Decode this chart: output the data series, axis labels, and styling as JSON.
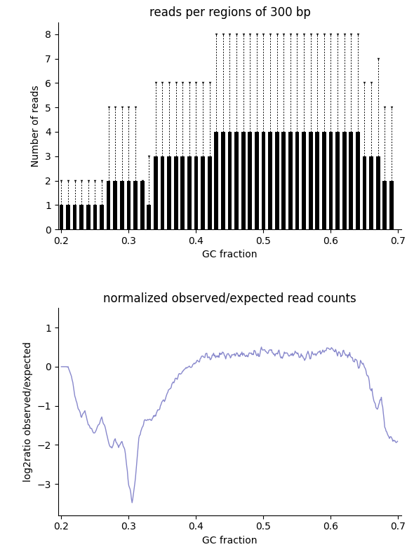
{
  "title1": "reads per regions of 300 bp",
  "title2": "normalized observed/expected read counts",
  "xlabel": "GC fraction",
  "ylabel1": "Number of reads",
  "ylabel2": "log2ratio observed/expected",
  "xlim1": [
    0.195,
    0.705
  ],
  "xlim2": [
    0.195,
    0.705
  ],
  "ylim1": [
    -0.2,
    8.8
  ],
  "ylim2": [
    -3.8,
    1.5
  ],
  "bar_color": "#000000",
  "line_color": "#8888cc",
  "bar_data": {
    "gc": [
      0.2,
      0.21,
      0.22,
      0.23,
      0.24,
      0.25,
      0.26,
      0.27,
      0.28,
      0.29,
      0.3,
      0.31,
      0.32,
      0.33,
      0.34,
      0.35,
      0.36,
      0.37,
      0.38,
      0.39,
      0.4,
      0.41,
      0.42,
      0.43,
      0.44,
      0.45,
      0.46,
      0.47,
      0.48,
      0.49,
      0.5,
      0.51,
      0.52,
      0.53,
      0.54,
      0.55,
      0.56,
      0.57,
      0.58,
      0.59,
      0.6,
      0.61,
      0.62,
      0.63,
      0.64,
      0.65,
      0.66,
      0.67,
      0.68,
      0.69
    ],
    "median": [
      1,
      1,
      1,
      1,
      1,
      1,
      1,
      2,
      2,
      2,
      2,
      2,
      2,
      1,
      3,
      3,
      3,
      3,
      3,
      3,
      3,
      3,
      3,
      4,
      4,
      4,
      4,
      4,
      4,
      4,
      4,
      4,
      4,
      4,
      4,
      4,
      4,
      4,
      4,
      4,
      4,
      4,
      4,
      4,
      4,
      3,
      3,
      3,
      2,
      2
    ],
    "upper": [
      2,
      2,
      2,
      2,
      2,
      2,
      2,
      5,
      5,
      5,
      5,
      5,
      2,
      3,
      6,
      6,
      6,
      6,
      6,
      6,
      6,
      6,
      6,
      8,
      8,
      8,
      8,
      8,
      8,
      8,
      8,
      8,
      8,
      8,
      8,
      8,
      8,
      8,
      8,
      8,
      8,
      8,
      8,
      8,
      8,
      6,
      6,
      7,
      5,
      5
    ],
    "lower": [
      0,
      0,
      0,
      0,
      0,
      0,
      0,
      0,
      0,
      0,
      0,
      0,
      0,
      0,
      0,
      0,
      0,
      0,
      0,
      0,
      0,
      0,
      0,
      0,
      0,
      0,
      0,
      0,
      0,
      0,
      0,
      0,
      0,
      0,
      0,
      0,
      0,
      0,
      0,
      0,
      0,
      0,
      0,
      0,
      0,
      0,
      0,
      0,
      0,
      0
    ]
  },
  "line_data_gc": [
    0.2,
    0.21,
    0.215,
    0.22,
    0.225,
    0.23,
    0.235,
    0.24,
    0.245,
    0.25,
    0.255,
    0.26,
    0.265,
    0.27,
    0.275,
    0.28,
    0.285,
    0.29,
    0.295,
    0.3,
    0.305,
    0.31,
    0.315,
    0.32,
    0.325,
    0.33,
    0.335,
    0.34,
    0.35,
    0.36,
    0.37,
    0.38,
    0.39,
    0.4,
    0.41,
    0.42,
    0.43,
    0.44,
    0.45,
    0.46,
    0.47,
    0.48,
    0.49,
    0.5,
    0.51,
    0.52,
    0.53,
    0.54,
    0.55,
    0.56,
    0.57,
    0.58,
    0.585,
    0.59,
    0.595,
    0.6,
    0.61,
    0.62,
    0.63,
    0.635,
    0.64,
    0.645,
    0.65,
    0.655,
    0.66,
    0.665,
    0.67,
    0.675,
    0.68,
    0.685,
    0.69
  ],
  "line_data_y": [
    0.0,
    0.0,
    -0.3,
    -0.7,
    -1.1,
    -1.3,
    -1.1,
    -1.5,
    -1.6,
    -1.7,
    -1.5,
    -1.3,
    -1.6,
    -1.9,
    -2.1,
    -1.85,
    -2.05,
    -1.9,
    -2.2,
    -3.0,
    -3.5,
    -2.8,
    -1.8,
    -1.5,
    -1.35,
    -1.4,
    -1.3,
    -1.2,
    -0.9,
    -0.6,
    -0.3,
    -0.1,
    0.0,
    0.1,
    0.25,
    0.3,
    0.3,
    0.35,
    0.3,
    0.35,
    0.25,
    0.35,
    0.3,
    0.4,
    0.35,
    0.3,
    0.25,
    0.35,
    0.3,
    0.25,
    0.3,
    0.35,
    0.45,
    0.4,
    0.5,
    0.45,
    0.3,
    0.35,
    0.2,
    0.15,
    0.1,
    0.2,
    0.0,
    -0.2,
    -0.5,
    -0.9,
    -1.1,
    -0.8,
    -1.5,
    -1.8,
    -1.85
  ]
}
